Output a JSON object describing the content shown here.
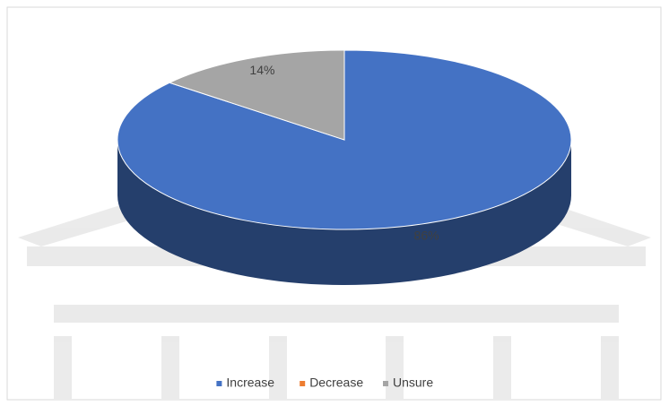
{
  "chart_data": {
    "type": "pie",
    "categories": [
      "Increase",
      "Decrease",
      "Unsure"
    ],
    "values": [
      86,
      0,
      14
    ],
    "value_labels": [
      "86%",
      null,
      "14%"
    ],
    "colors": [
      "#4472c4",
      "#ed7d31",
      "#a5a5a5"
    ],
    "legend": "bottom"
  }
}
